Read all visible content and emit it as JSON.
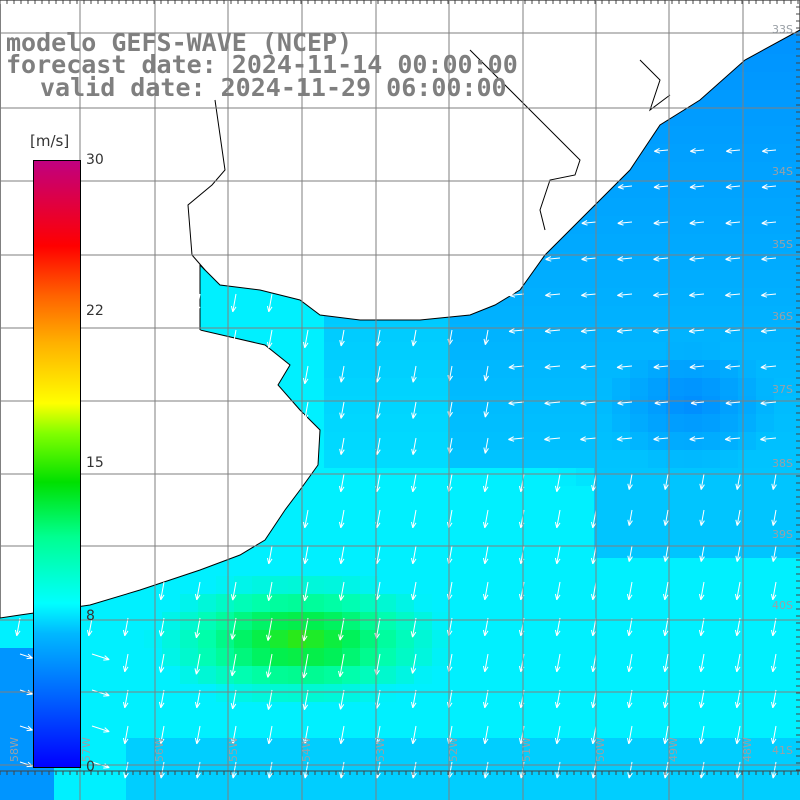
{
  "title": {
    "line1": "modelo GEFS-WAVE (NCEP)",
    "line2": "forecast date: 2024-11-14 00:00:00",
    "line3": "valid date: 2024-11-29 06:00:00"
  },
  "colorbar": {
    "unit": "[m/s]",
    "ticks": [
      "30",
      "22",
      "15",
      "8",
      "0"
    ],
    "tick_values": [
      30,
      22,
      15,
      8,
      0
    ],
    "range": [
      0,
      30
    ]
  },
  "lat_labels": [
    "33S",
    "34S",
    "35S",
    "36S",
    "37S",
    "38S",
    "39S",
    "40S",
    "41S"
  ],
  "lon_labels": [
    "58W",
    "57W",
    "56W",
    "55W",
    "54W",
    "53W",
    "52W",
    "51W",
    "50W",
    "49W",
    "48W"
  ],
  "colors": {
    "land": "#ffffff",
    "coast": "#000000",
    "grid": "#7f7f7f",
    "title": "#7f7f7f",
    "arrow": "#ffffff"
  }
}
